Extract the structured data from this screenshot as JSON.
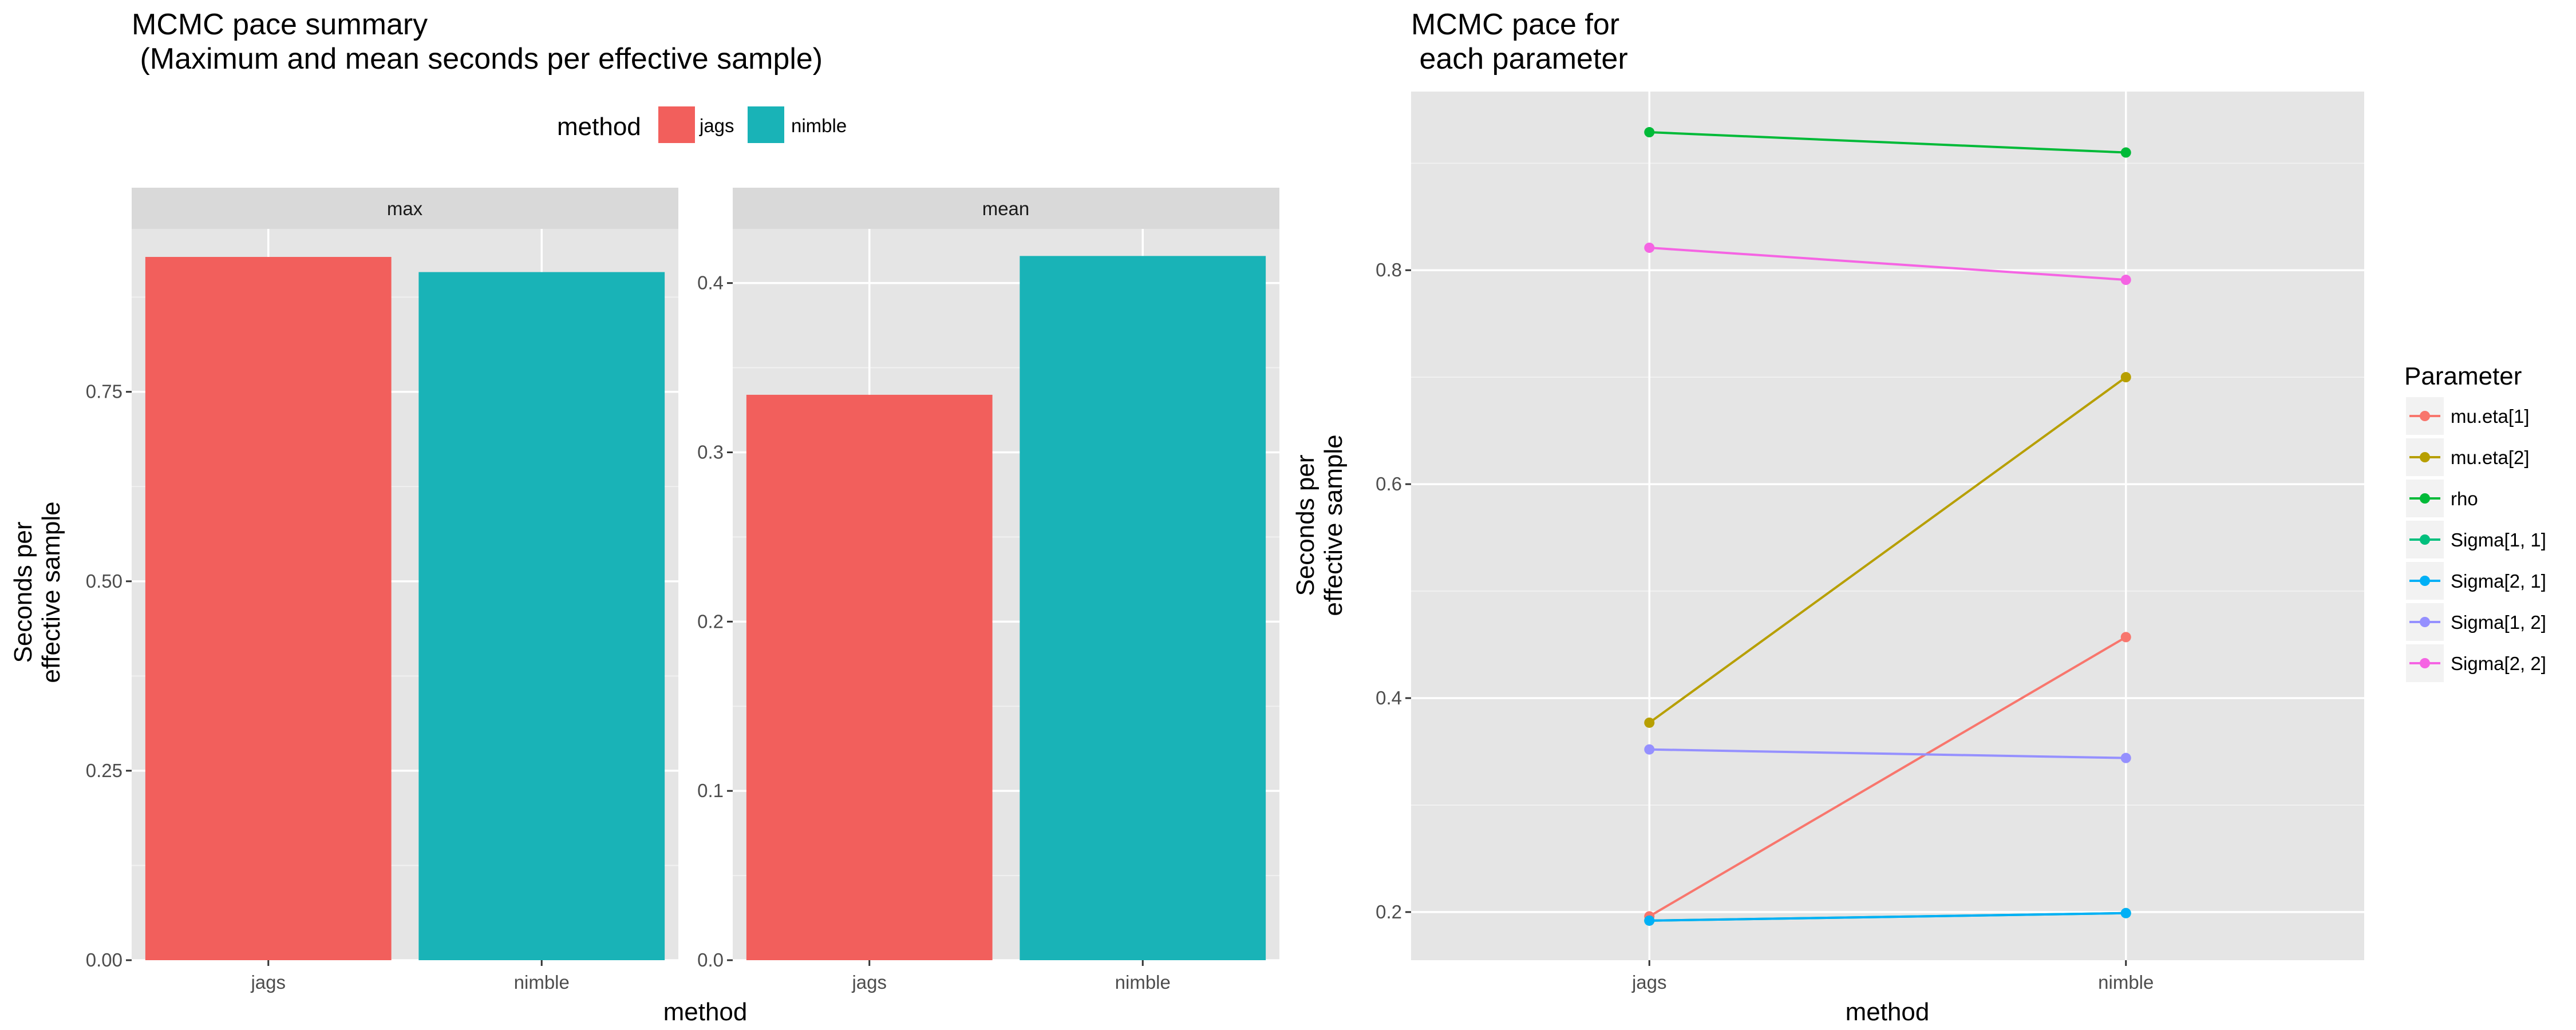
{
  "chart_data": [
    {
      "type": "bar",
      "title": [
        "MCMC pace summary",
        " (Maximum and mean seconds per effective sample)"
      ],
      "xlabel": "method",
      "ylabel": [
        "Seconds per",
        "effective sample"
      ],
      "legend": {
        "title": "method",
        "placement": "top",
        "entries": [
          {
            "label": "jags",
            "color": "#f25f5c"
          },
          {
            "label": "nimble",
            "color": "#19b3b7"
          }
        ]
      },
      "categories": [
        "jags",
        "nimble"
      ],
      "facets": [
        {
          "label": "max",
          "values": [
            0.928,
            0.908
          ],
          "ylim": [
            0,
            0.965
          ],
          "yticks": [
            0,
            0.25,
            0.5,
            0.75
          ],
          "ytick_labels": [
            "0.00",
            "0.25",
            "0.50",
            "0.75"
          ]
        },
        {
          "label": "mean",
          "values": [
            0.334,
            0.416
          ],
          "ylim": [
            0,
            0.432
          ],
          "yticks": [
            0,
            0.1,
            0.2,
            0.3,
            0.4
          ],
          "ytick_labels": [
            "0.0",
            "0.1",
            "0.2",
            "0.3",
            "0.4"
          ]
        }
      ]
    },
    {
      "type": "line",
      "title": [
        "MCMC pace for",
        " each parameter"
      ],
      "xlabel": "method",
      "ylabel": [
        "Seconds per",
        "effective sample"
      ],
      "categories": [
        "jags",
        "nimble"
      ],
      "ylim": [
        0.155,
        0.967
      ],
      "yticks": [
        0.2,
        0.4,
        0.6,
        0.8
      ],
      "ytick_labels": [
        "0.2",
        "0.4",
        "0.6",
        "0.8"
      ],
      "legend": {
        "title": "Parameter",
        "placement": "right"
      },
      "series": [
        {
          "name": "mu.eta[1]",
          "color": "#f8766d",
          "values": [
            0.196,
            0.457
          ]
        },
        {
          "name": "mu.eta[2]",
          "color": "#b79f00",
          "values": [
            0.377,
            0.7
          ]
        },
        {
          "name": "rho",
          "color": "#00ba38",
          "values": [
            0.929,
            0.91
          ]
        },
        {
          "name": "Sigma[1, 1]",
          "color": "#00bf7d",
          "values": [
            0.192,
            0.199
          ]
        },
        {
          "name": "Sigma[2, 1]",
          "color": "#00b0f6",
          "values": [
            0.192,
            0.199
          ]
        },
        {
          "name": "Sigma[1, 2]",
          "color": "#9590ff",
          "values": [
            0.352,
            0.344
          ]
        },
        {
          "name": "Sigma[2, 2]",
          "color": "#f564e3",
          "values": [
            0.821,
            0.791
          ]
        }
      ]
    }
  ]
}
